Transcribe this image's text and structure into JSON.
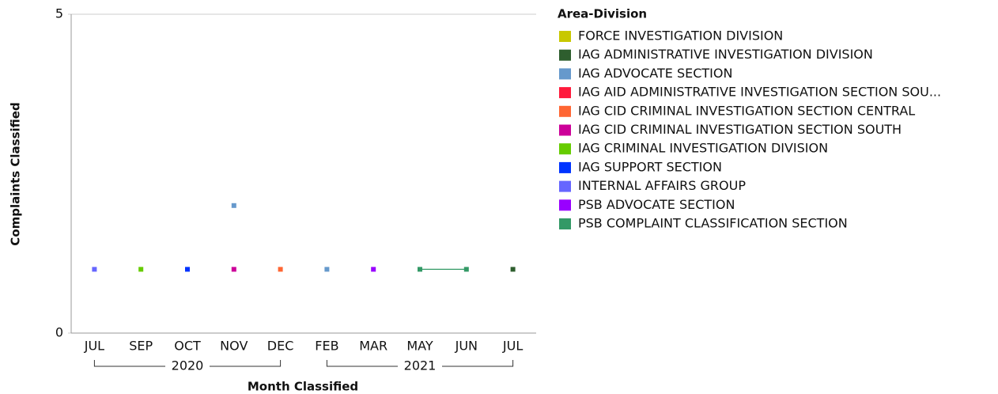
{
  "chart_data": {
    "type": "line",
    "x_label": "Month Classified",
    "y_label": "Complaints Classified",
    "legend_title": "Area-Division",
    "legend_position": "right",
    "categories": [
      "JUL",
      "SEP",
      "OCT",
      "NOV",
      "DEC",
      "FEB",
      "MAR",
      "MAY",
      "JUN",
      "JUL"
    ],
    "category_groups": [
      {
        "label": "2020",
        "size": 5
      },
      {
        "label": "2021",
        "size": 5
      }
    ],
    "ylim": [
      0,
      5
    ],
    "yticks": [
      0,
      5
    ],
    "grid": true,
    "series": [
      {
        "name": "FORCE INVESTIGATION DIVISION",
        "color": "#c8c800",
        "values": [
          null,
          null,
          null,
          null,
          null,
          null,
          null,
          null,
          null,
          null
        ]
      },
      {
        "name": "IAG ADMINISTRATIVE INVESTIGATION DIVISION",
        "color": "#2e5e2e",
        "values": [
          null,
          null,
          null,
          null,
          null,
          null,
          null,
          null,
          null,
          1
        ]
      },
      {
        "name": "IAG ADVOCATE SECTION",
        "color": "#6699cc",
        "values": [
          null,
          null,
          null,
          2,
          null,
          1,
          null,
          null,
          null,
          null
        ]
      },
      {
        "name": "IAG AID ADMINISTRATIVE INVESTIGATION SECTION SOU...",
        "color": "#ff1a3c",
        "values": [
          null,
          null,
          null,
          null,
          null,
          null,
          null,
          null,
          null,
          null
        ]
      },
      {
        "name": "IAG CID CRIMINAL INVESTIGATION SECTION CENTRAL",
        "color": "#ff6633",
        "values": [
          null,
          null,
          null,
          null,
          1,
          null,
          null,
          null,
          null,
          null
        ]
      },
      {
        "name": "IAG CID CRIMINAL INVESTIGATION SECTION SOUTH",
        "color": "#cc0099",
        "values": [
          null,
          null,
          null,
          1,
          null,
          null,
          null,
          null,
          null,
          null
        ]
      },
      {
        "name": "IAG CRIMINAL INVESTIGATION DIVISION",
        "color": "#66cc00",
        "values": [
          null,
          1,
          null,
          null,
          null,
          null,
          null,
          null,
          null,
          null
        ]
      },
      {
        "name": "IAG SUPPORT SECTION",
        "color": "#0033ff",
        "values": [
          null,
          null,
          1,
          null,
          null,
          null,
          null,
          null,
          null,
          null
        ]
      },
      {
        "name": "INTERNAL AFFAIRS GROUP",
        "color": "#6666ff",
        "values": [
          1,
          null,
          null,
          null,
          null,
          null,
          null,
          null,
          null,
          null
        ]
      },
      {
        "name": "PSB ADVOCATE SECTION",
        "color": "#9900ff",
        "values": [
          null,
          null,
          null,
          null,
          null,
          null,
          1,
          null,
          null,
          null
        ]
      },
      {
        "name": "PSB COMPLAINT CLASSIFICATION SECTION",
        "color": "#339966",
        "values": [
          null,
          null,
          null,
          null,
          null,
          null,
          null,
          1,
          1,
          null
        ]
      }
    ]
  }
}
